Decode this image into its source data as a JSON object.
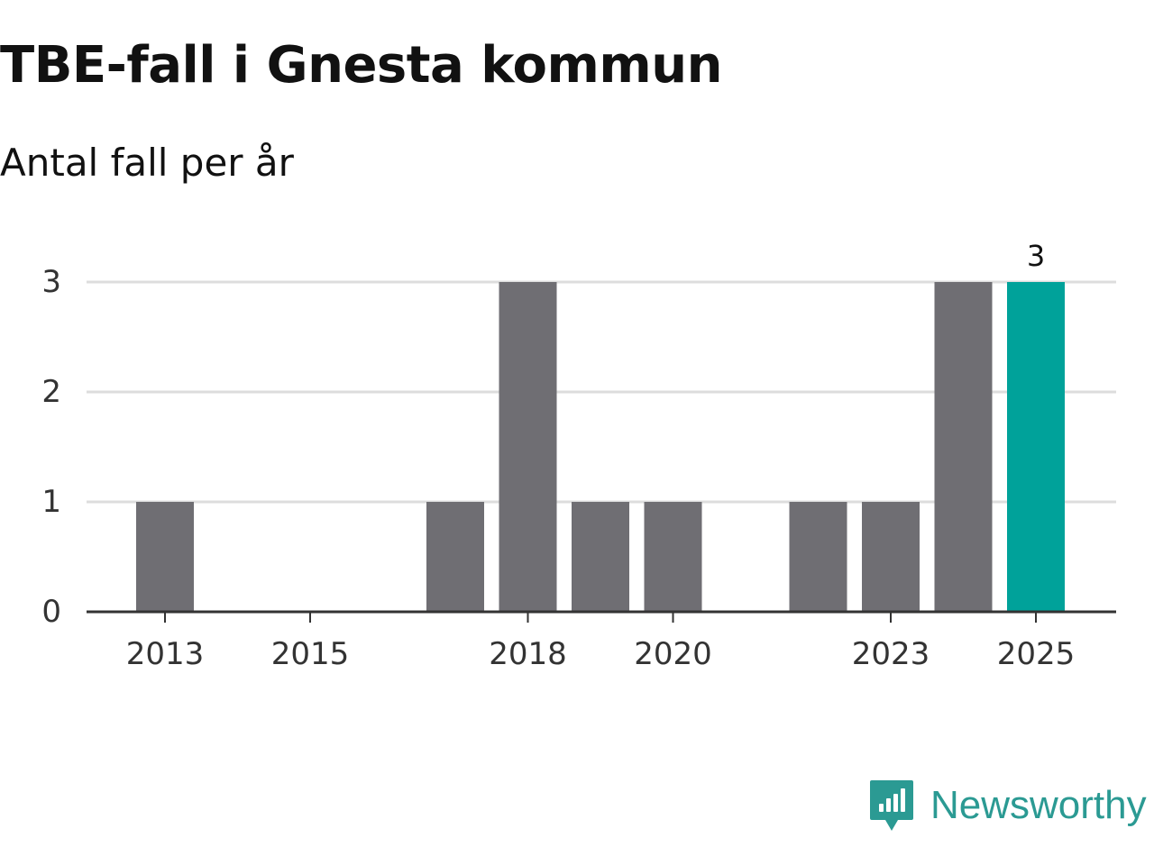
{
  "header": {
    "title": "TBE-fall i Gnesta kommun",
    "subtitle": "Antal fall per år"
  },
  "brand": {
    "name": "Newsworthy",
    "icon": "newsworthy-logo-icon",
    "color": "#2b9a93"
  },
  "colors": {
    "bar": "#6f6e73",
    "highlight": "#00a29a",
    "grid": "#dddddd",
    "axis": "#333333",
    "text": "#333333"
  },
  "chart_data": {
    "type": "bar",
    "title": "TBE-fall i Gnesta kommun",
    "subtitle": "Antal fall per år",
    "xlabel": "",
    "ylabel": "",
    "categories": [
      "2013",
      "2014",
      "2015",
      "2016",
      "2017",
      "2018",
      "2019",
      "2020",
      "2021",
      "2022",
      "2023",
      "2024",
      "2025"
    ],
    "values": [
      1,
      0,
      0,
      0,
      1,
      3,
      1,
      1,
      0,
      1,
      1,
      3,
      3
    ],
    "highlight_category": "2025",
    "data_labels": [
      {
        "category": "2025",
        "text": "3"
      }
    ],
    "x_tick_labels": [
      "2013",
      "2015",
      "2018",
      "2020",
      "2023",
      "2025"
    ],
    "y_ticks": [
      0,
      1,
      2,
      3
    ],
    "ylim": [
      0,
      3
    ],
    "grid": true,
    "legend": "none"
  }
}
